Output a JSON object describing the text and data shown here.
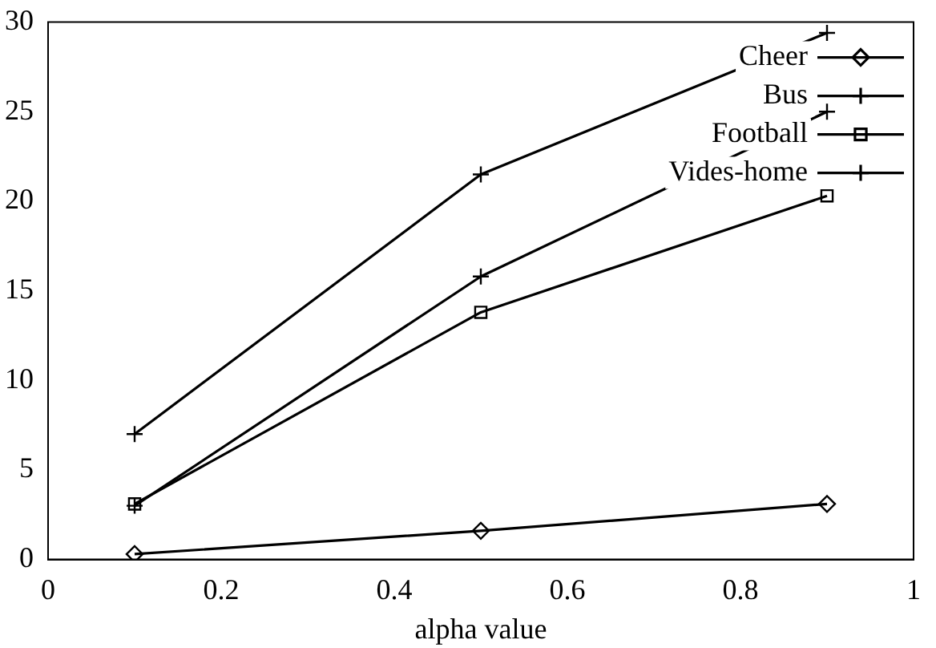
{
  "chart_data": {
    "type": "line",
    "xlabel": "alpha value",
    "x": [
      0.1,
      0.5,
      0.9
    ],
    "xlim": [
      0,
      1
    ],
    "xticks": [
      0,
      0.2,
      0.4,
      0.6,
      0.8,
      1
    ],
    "ylim": [
      0,
      30
    ],
    "yticks": [
      0,
      5,
      10,
      15,
      20,
      25,
      30
    ],
    "grid": false,
    "legend": "top right",
    "line_style": "solid",
    "series": [
      {
        "name": "Cheer",
        "color": "#000000",
        "marker": "diamond",
        "values": [
          0.3,
          1.6,
          3.1
        ]
      },
      {
        "name": "Bus",
        "color": "#000000",
        "marker": "cross",
        "values": [
          3.0,
          15.8,
          25.0
        ]
      },
      {
        "name": "Football",
        "color": "#000000",
        "marker": "square",
        "values": [
          3.1,
          13.8,
          20.3
        ]
      },
      {
        "name": "Vides-home",
        "color": "#000000",
        "marker": "cross",
        "values": [
          7.0,
          21.5,
          29.4
        ]
      }
    ]
  }
}
